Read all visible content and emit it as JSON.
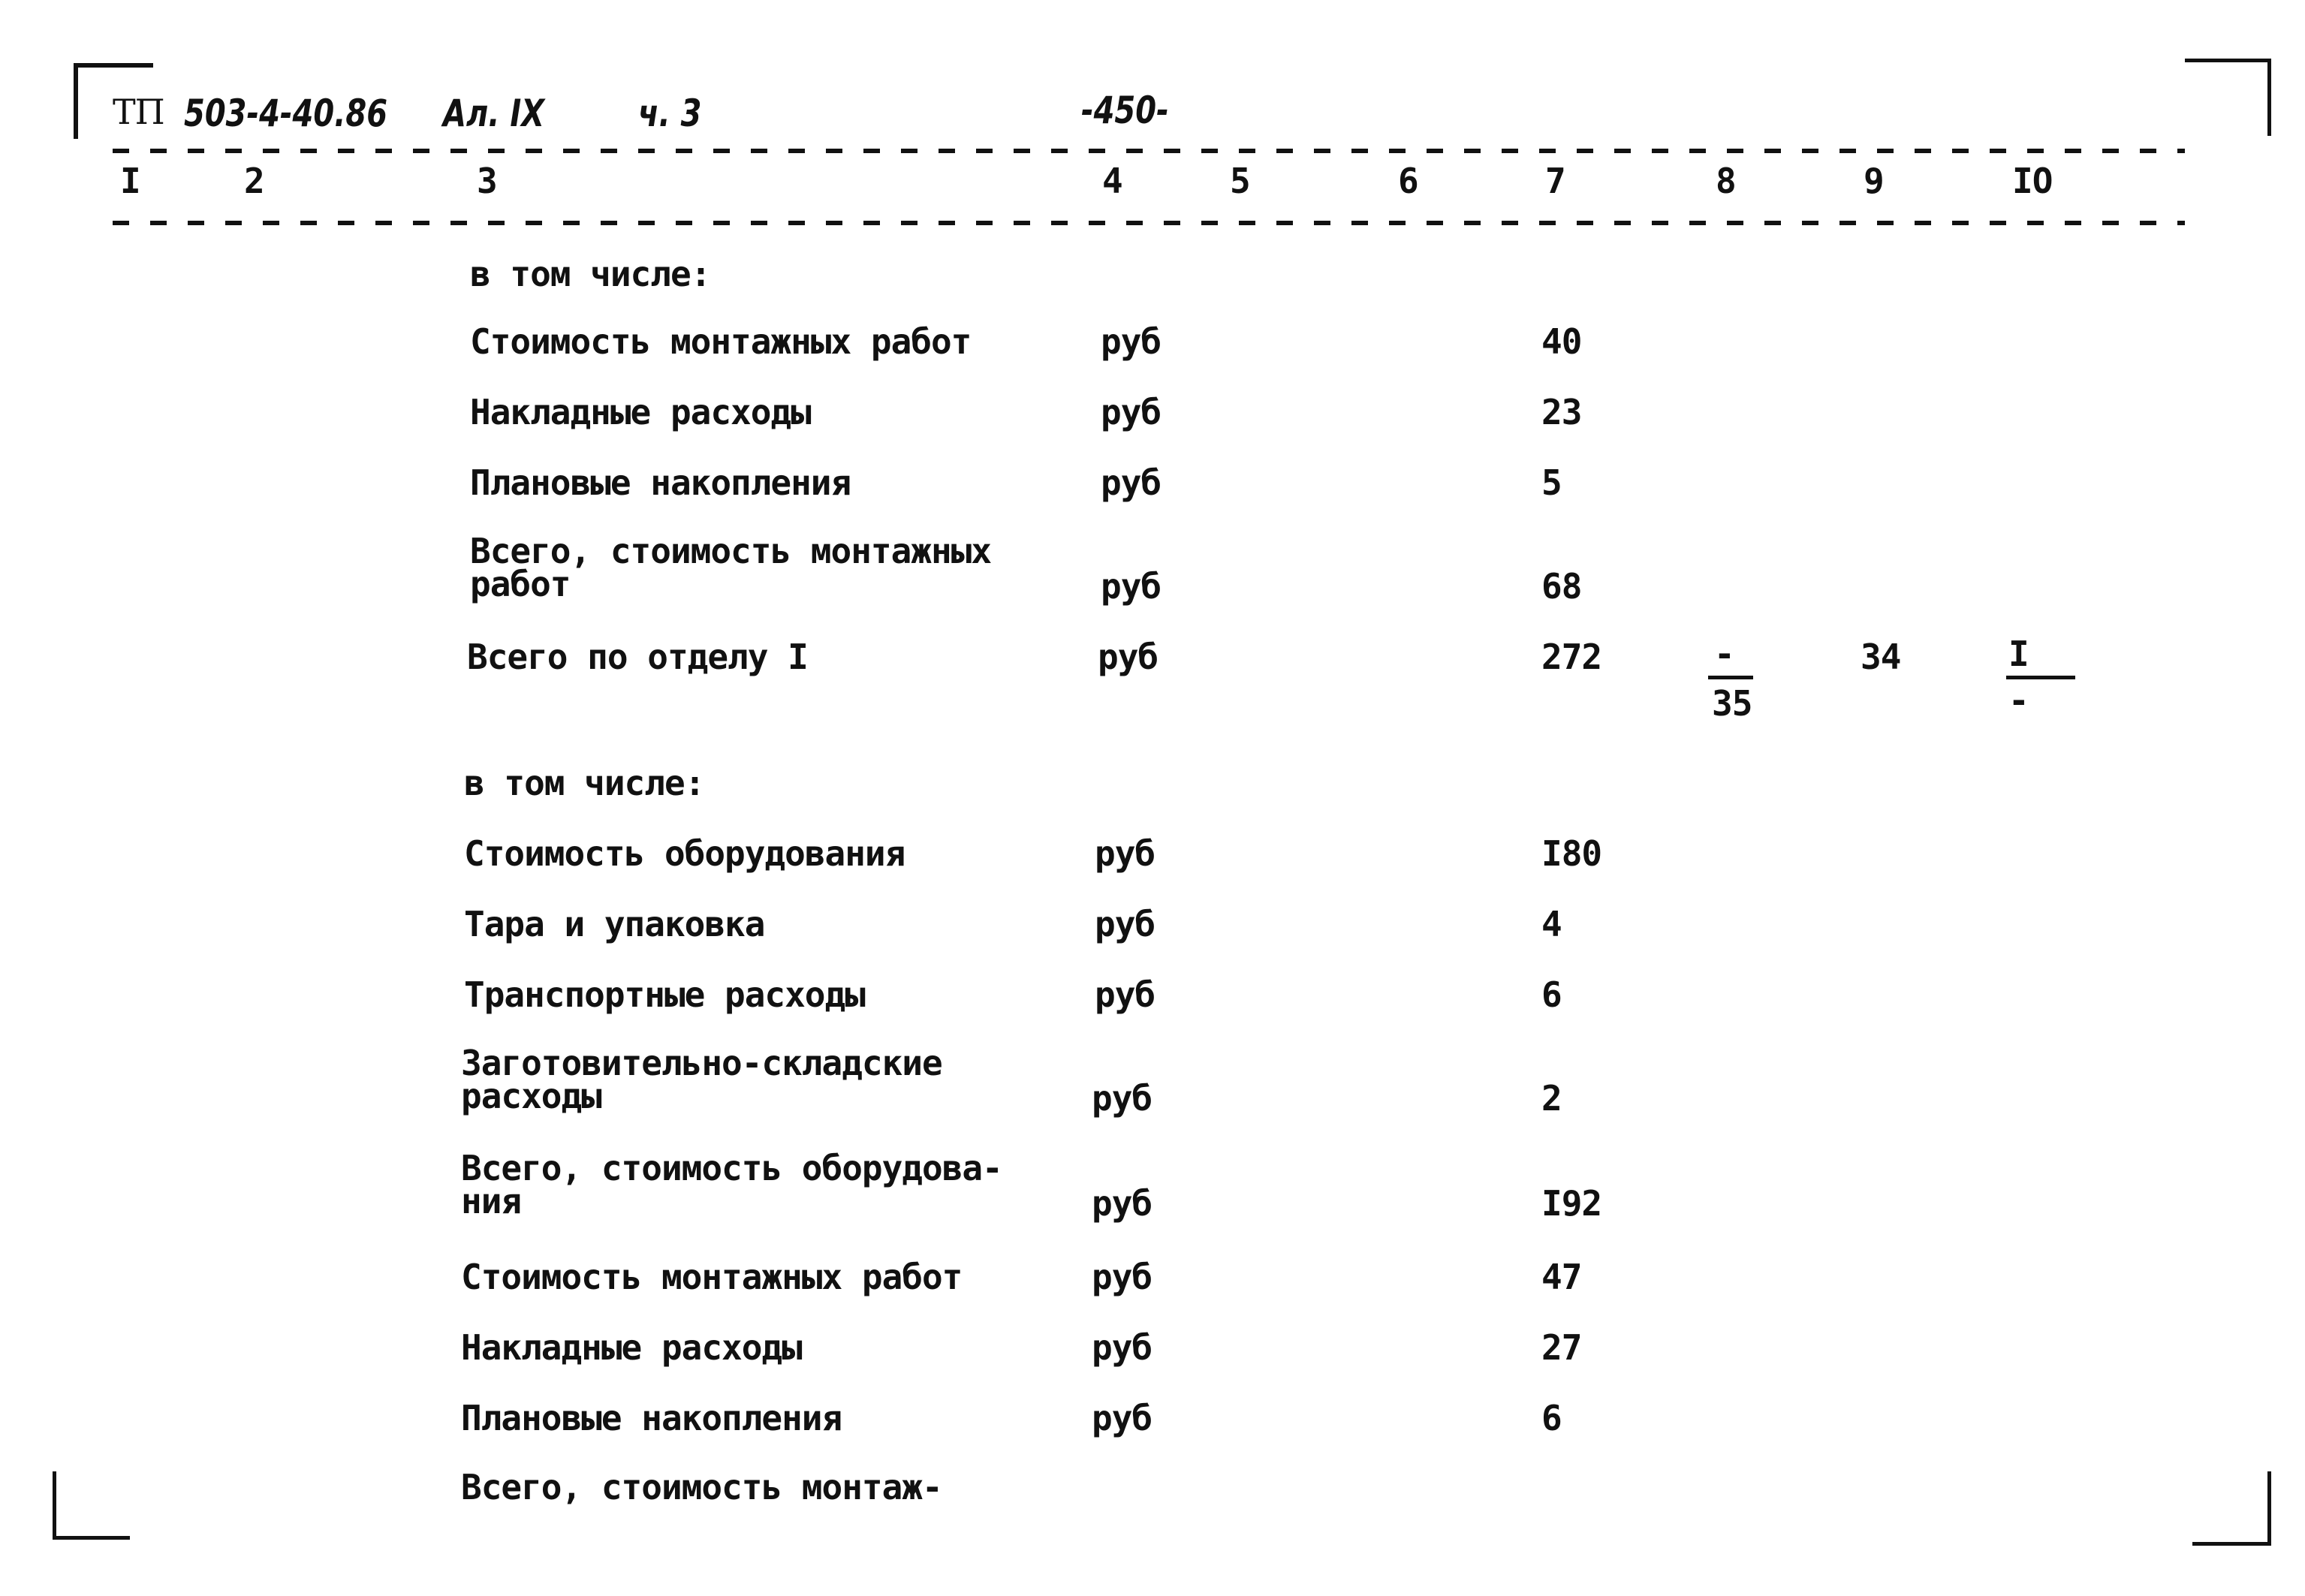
{
  "header": {
    "doc_code": "ТП",
    "doc_number": "503-4-40.86",
    "album": "Ал. IX",
    "part": "ч. 3",
    "page_number": "-450-"
  },
  "columns": [
    "I",
    "2",
    "3",
    "4",
    "5",
    "6",
    "7",
    "8",
    "9",
    "IO"
  ],
  "rows": [
    {
      "label": "в том числе:",
      "unit": "",
      "c7": ""
    },
    {
      "label": "Стоимость монтажных работ",
      "unit": "руб",
      "c7": "40"
    },
    {
      "label": "Накладные расходы",
      "unit": "руб",
      "c7": "23"
    },
    {
      "label": "Плановые накопления",
      "unit": "руб",
      "c7": "5"
    },
    {
      "label": "Всего, стоимость монтажных\nработ",
      "unit": "руб",
      "c7": "68"
    },
    {
      "label": "Всего по отделу I",
      "unit": "руб",
      "c7": "272",
      "c8_num": "-",
      "c8_den": "35",
      "c9": "34",
      "c10_num": "I",
      "c10_den": "-"
    },
    {
      "label": "в том числе:",
      "unit": "",
      "c7": ""
    },
    {
      "label": "Стоимость оборудования",
      "unit": "руб",
      "c7": "I80"
    },
    {
      "label": "Тара и упаковка",
      "unit": "руб",
      "c7": "4"
    },
    {
      "label": "Транспортные расходы",
      "unit": "руб",
      "c7": "6"
    },
    {
      "label": "Заготовительно-складские\nрасходы",
      "unit": "руб",
      "c7": "2"
    },
    {
      "label": "Всего, стоимость оборудова-\nния",
      "unit": "руб",
      "c7": "I92"
    },
    {
      "label": "Стоимость монтажных работ",
      "unit": "руб",
      "c7": "47"
    },
    {
      "label": "Накладные расходы",
      "unit": "руб",
      "c7": "27"
    },
    {
      "label": "Плановые накопления",
      "unit": "руб",
      "c7": "6"
    },
    {
      "label": "Всего, стоимость монтаж-",
      "unit": "",
      "c7": ""
    }
  ]
}
